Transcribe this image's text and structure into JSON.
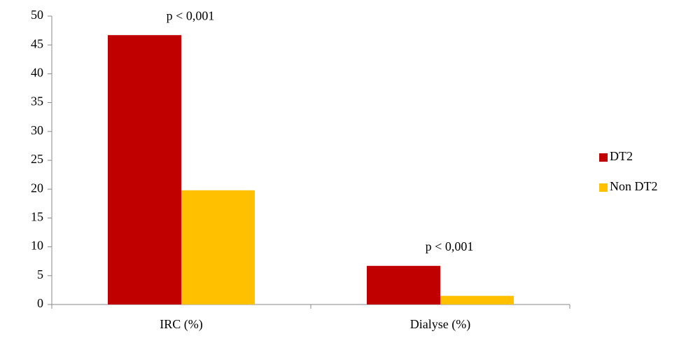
{
  "chart_data": {
    "type": "bar",
    "categories": [
      "IRC (%)",
      "Dialyse (%)"
    ],
    "series": [
      {
        "name": "DT2",
        "color": "#c00000",
        "values": [
          46.7,
          6.7
        ]
      },
      {
        "name": "Non DT2",
        "color": "#ffc000",
        "values": [
          19.8,
          1.5
        ]
      }
    ],
    "annotations": [
      "p < 0,001",
      "p < 0,001"
    ],
    "ylim": [
      0,
      50
    ],
    "yticks": [
      0,
      5,
      10,
      15,
      20,
      25,
      30,
      35,
      40,
      45,
      50
    ],
    "legend": "right"
  }
}
